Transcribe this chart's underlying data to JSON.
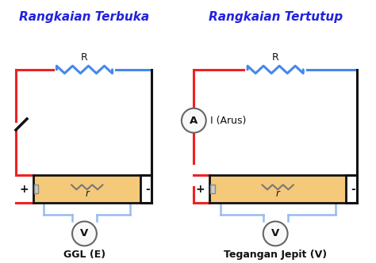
{
  "title_left": "Rangkaian Terbuka",
  "title_right": "Rangkaian Tertutup",
  "label_R": "R",
  "label_r": "r",
  "label_plus": "+",
  "label_minus": "-",
  "label_V": "V",
  "label_A": "A",
  "label_GGL": "GGL (E)",
  "label_Teg": "Tegangan Jepit (V)",
  "label_I_Arus": "I (Arus)",
  "bg_color": "#ffffff",
  "title_color": "#2222dd",
  "wire_blue": "#4488ee",
  "wire_red": "#ee2222",
  "wire_black": "#111111",
  "battery_fill": "#f5c97a",
  "battery_border": "#111111",
  "text_color": "#111111",
  "circle_face": "#f8f8f8",
  "circle_edge": "#666666",
  "voltmeter_wire": "#99bbee"
}
